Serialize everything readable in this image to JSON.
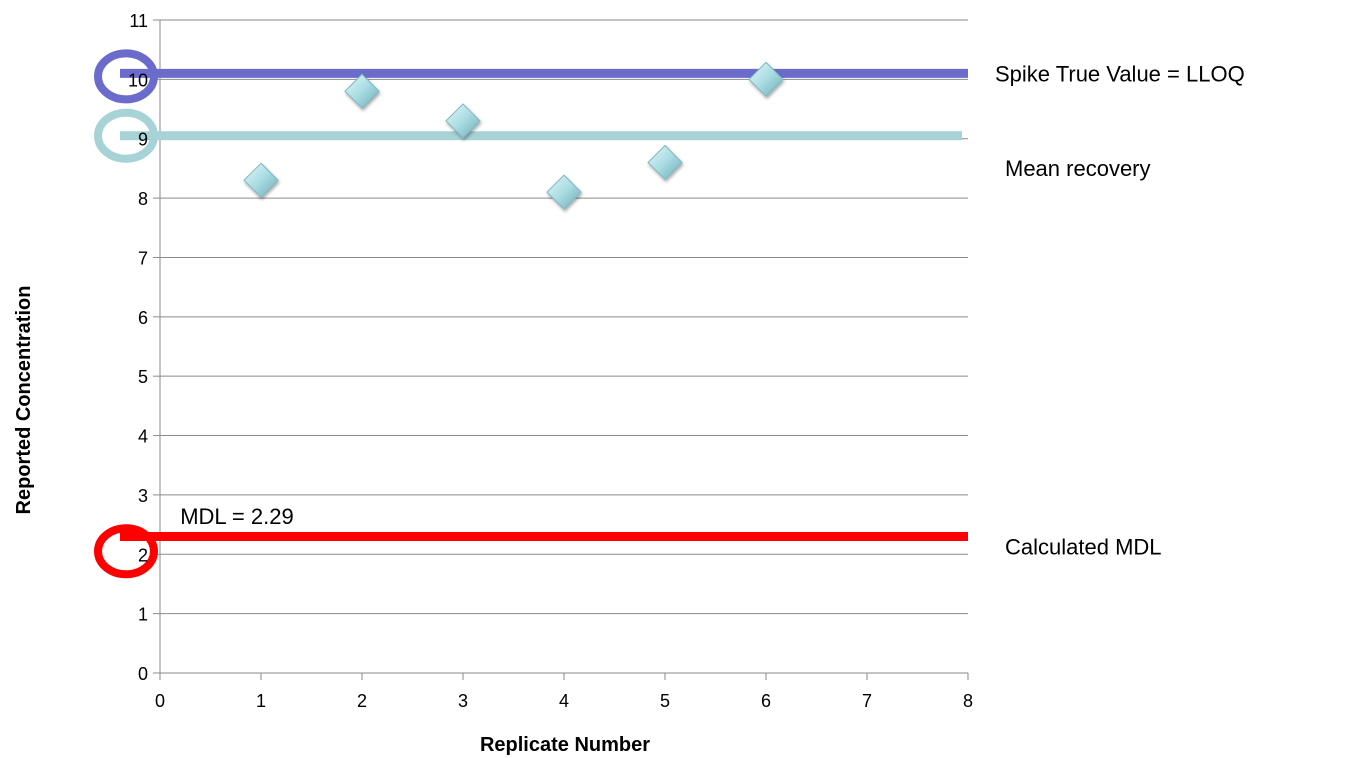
{
  "chart_data": {
    "type": "scatter",
    "xlabel": "Replicate Number",
    "ylabel": "Reported Concentration",
    "xlim": [
      0,
      8
    ],
    "ylim": [
      0,
      11
    ],
    "x_ticks": [
      "0",
      "1",
      "2",
      "3",
      "4",
      "5",
      "6",
      "7",
      "8"
    ],
    "y_ticks": [
      "0",
      "1",
      "2",
      "3",
      "4",
      "5",
      "6",
      "7",
      "8",
      "9",
      "10",
      "11"
    ],
    "grid": "horizontal",
    "points": [
      {
        "x": 1,
        "y": 8.3
      },
      {
        "x": 2,
        "y": 9.8
      },
      {
        "x": 3,
        "y": 9.3
      },
      {
        "x": 4,
        "y": 8.1
      },
      {
        "x": 5,
        "y": 8.6
      },
      {
        "x": 6,
        "y": 10.0
      }
    ],
    "point_color": "#a9dce3",
    "reference_lines": [
      {
        "label": "Spike True Value = LLOQ",
        "y": 10.1,
        "color": "#6b6bcc",
        "highlight_tick": 10
      },
      {
        "label": "Mean recovery",
        "y": 9.05,
        "color": "#a7d3d6",
        "highlight_tick": 9
      },
      {
        "label": "Calculated MDL",
        "y": 2.3,
        "color": "#ff0000",
        "highlight_tick": 2
      }
    ],
    "annotations": [
      {
        "text": "MDL = 2.29",
        "x": 0.2,
        "y": 2.75
      }
    ]
  }
}
